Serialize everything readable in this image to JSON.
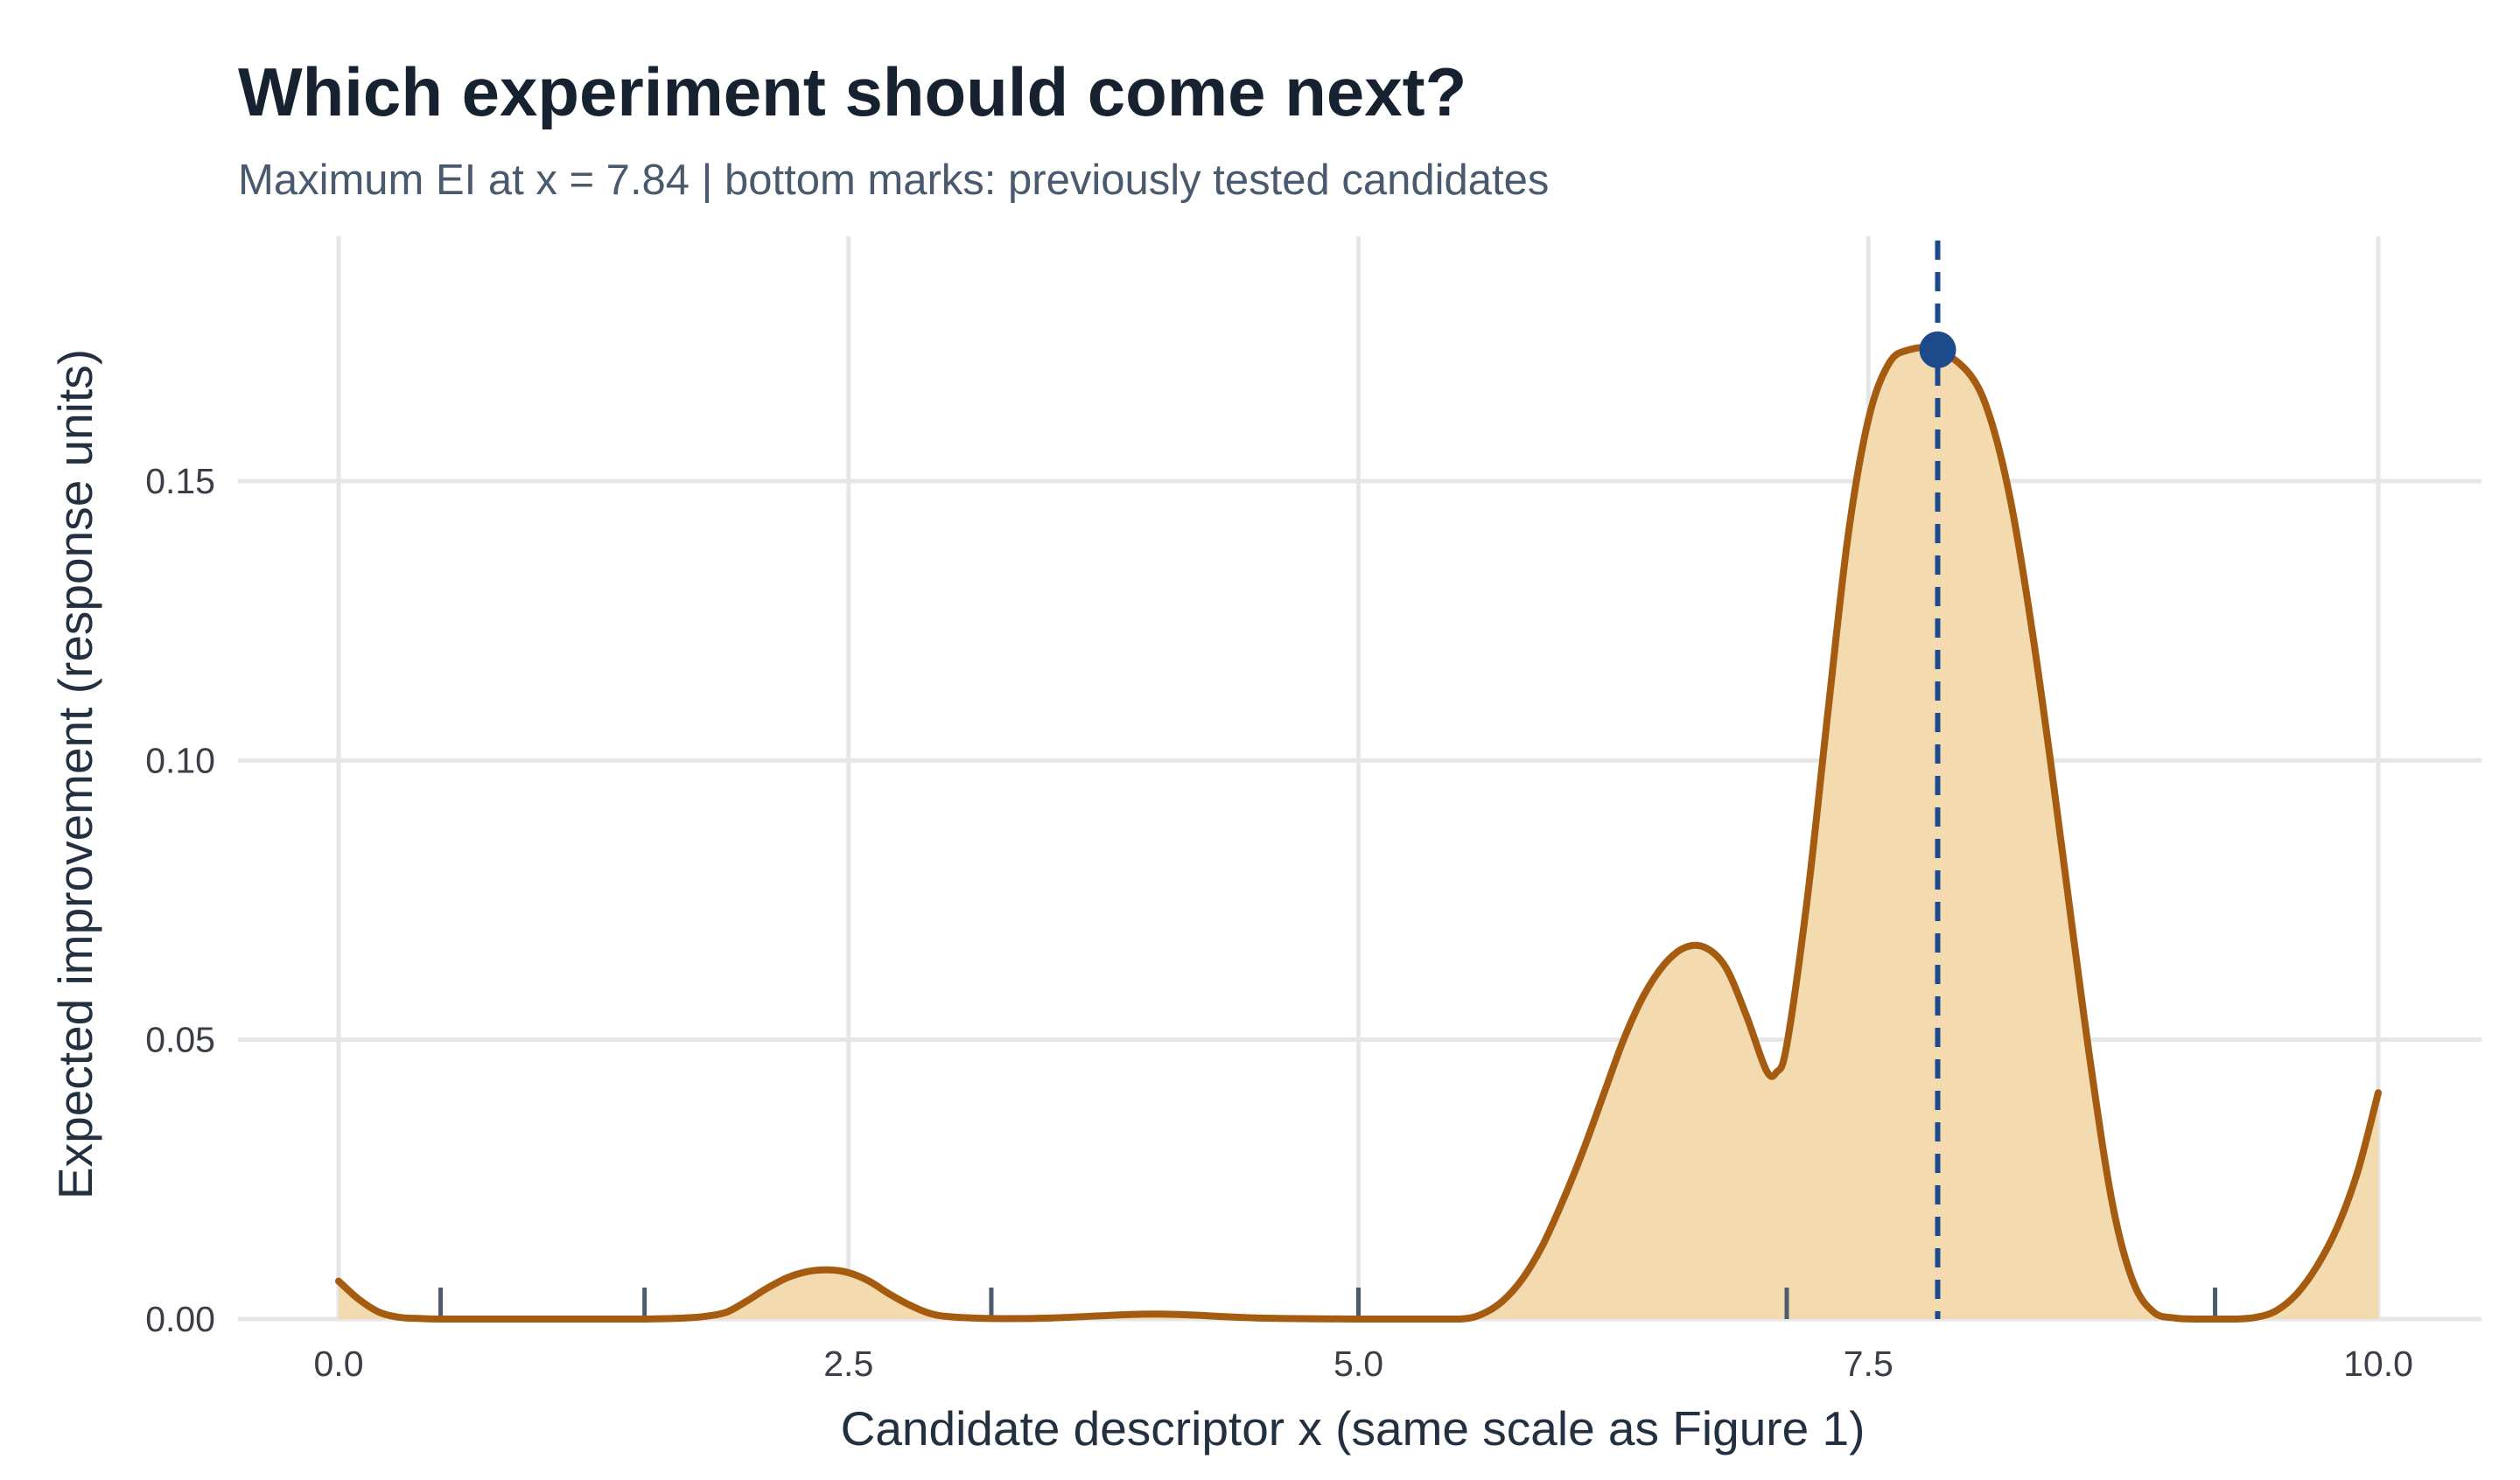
{
  "chart_data": {
    "type": "area",
    "title": "Which experiment should come next?",
    "subtitle": "Maximum EI at x = 7.84 | bottom marks: previously tested candidates",
    "xlabel": "Candidate descriptor x (same scale as Figure 1)",
    "ylabel": "Expected improvement (response units)",
    "xlim": [
      -0.5,
      10.5
    ],
    "ylim": [
      0,
      0.19
    ],
    "x_ticks": [
      0.0,
      2.5,
      5.0,
      7.5,
      10.0
    ],
    "x_tick_labels": [
      "0.0",
      "2.5",
      "5.0",
      "7.5",
      "10.0"
    ],
    "y_ticks": [
      0.0,
      0.05,
      0.1,
      0.15
    ],
    "y_tick_labels": [
      "0.00",
      "0.05",
      "0.10",
      "0.15"
    ],
    "grid": true,
    "series": [
      {
        "x": [
          0.0,
          0.1,
          0.2,
          0.3,
          0.4,
          0.5,
          0.7,
          1.0,
          1.3,
          1.5,
          1.7,
          1.8,
          1.9,
          2.0,
          2.1,
          2.2,
          2.3,
          2.4,
          2.5,
          2.6,
          2.7,
          2.8,
          2.9,
          3.0,
          3.2,
          3.5,
          3.8,
          4.0,
          4.2,
          4.5,
          5.0,
          5.3,
          5.5,
          5.6,
          5.7,
          5.8,
          5.9,
          6.0,
          6.1,
          6.2,
          6.3,
          6.4,
          6.5,
          6.6,
          6.7,
          6.8,
          6.9,
          7.0,
          7.05,
          7.1,
          7.2,
          7.3,
          7.4,
          7.5,
          7.6,
          7.7,
          7.84,
          8.0,
          8.1,
          8.2,
          8.3,
          8.4,
          8.5,
          8.6,
          8.7,
          8.8,
          8.9,
          9.0,
          9.1,
          9.2,
          9.3,
          9.4,
          9.5,
          9.6,
          9.7,
          9.8,
          9.9,
          10.0
        ],
        "values": [
          0.0068,
          0.0035,
          0.0012,
          0.0003,
          0.0001,
          0.0,
          0.0,
          0.0,
          0.0,
          0.0,
          0.0002,
          0.0005,
          0.0012,
          0.0032,
          0.0055,
          0.0074,
          0.0085,
          0.0088,
          0.0083,
          0.0068,
          0.0045,
          0.0025,
          0.001,
          0.0004,
          0.0001,
          0.0002,
          0.0007,
          0.0009,
          0.0007,
          0.0002,
          0.0,
          0.0,
          0.0,
          0.0008,
          0.003,
          0.007,
          0.013,
          0.021,
          0.03,
          0.04,
          0.05,
          0.058,
          0.0635,
          0.0665,
          0.0665,
          0.063,
          0.0545,
          0.0445,
          0.0442,
          0.049,
          0.075,
          0.108,
          0.14,
          0.161,
          0.171,
          0.1735,
          0.1735,
          0.169,
          0.161,
          0.146,
          0.124,
          0.098,
          0.07,
          0.043,
          0.02,
          0.0065,
          0.0012,
          0.0002,
          0.0,
          0.0,
          0.0,
          0.0003,
          0.0015,
          0.0045,
          0.0095,
          0.0165,
          0.0265,
          0.0405
        ]
      }
    ],
    "max_point": {
      "x": 7.84,
      "y": 0.1735
    },
    "vline_x": 7.84,
    "rug_x": [
      0.5,
      1.5,
      3.2,
      5.0,
      7.1,
      9.2
    ],
    "colors": {
      "curve": "#a65c10",
      "fill": "#f2d9ab",
      "max_marker": "#1c4a8a",
      "vline": "#1c4a8a",
      "rug": "#4d5c6d",
      "grid": "#e6e6e6"
    }
  }
}
